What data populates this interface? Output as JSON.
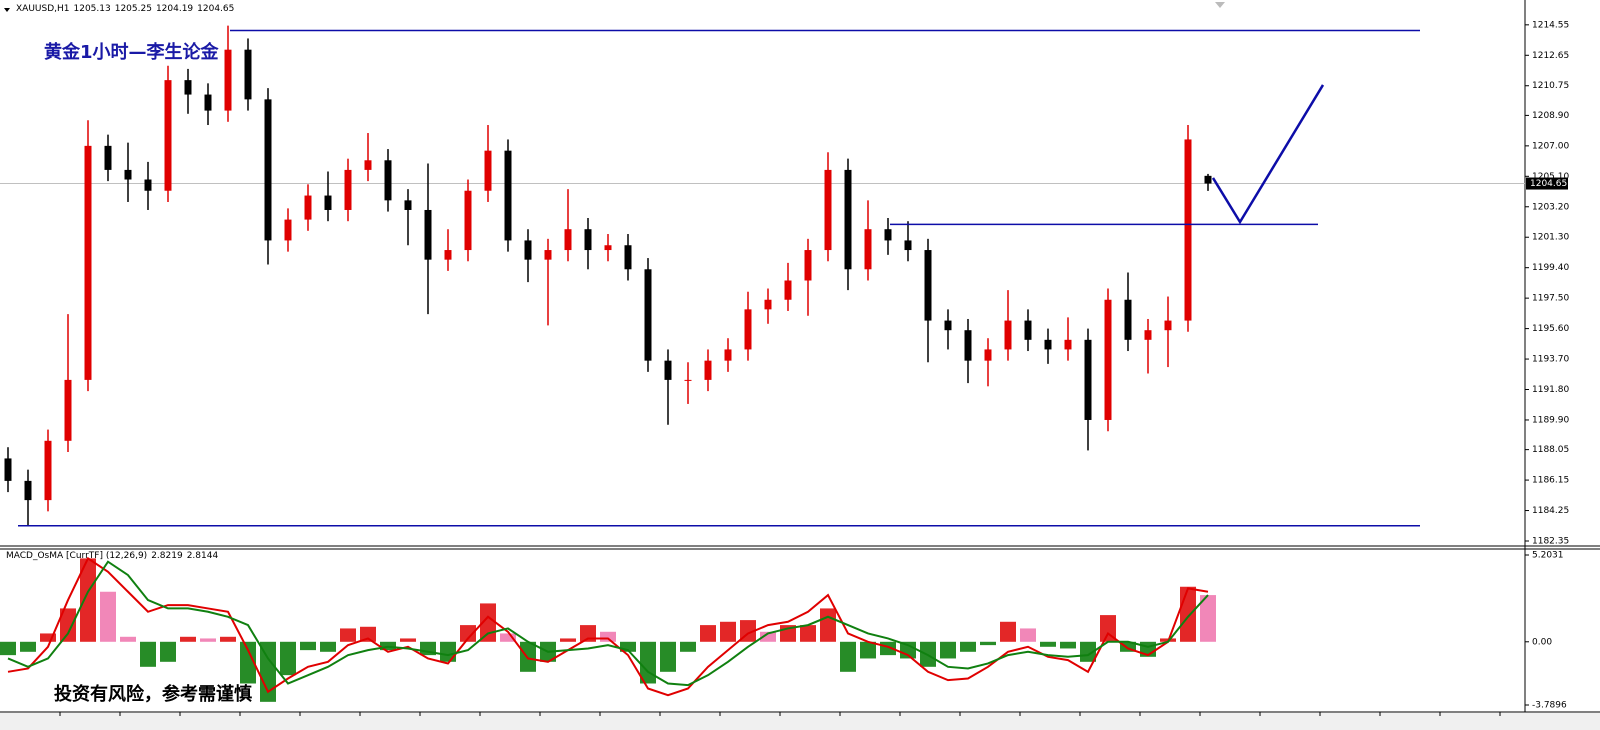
{
  "chart_data": [
    {
      "type": "candlestick",
      "symbol": "XAUUSD,H1",
      "annotation": "黄金1小时—李生论金",
      "up_color": "#e00000",
      "down_color": "#000000",
      "line_color": "#0d0da8",
      "ylim": [
        1182.1,
        1215.6
      ],
      "yticks": [
        1214.55,
        1212.65,
        1210.75,
        {
          "value": 1208.9,
          "label": "1208.90"
        },
        {
          "value": 1207,
          "label": "1207.00"
        },
        {
          "value": 1205.1,
          "label": "1205.10"
        },
        {
          "value": 1203.2,
          "label": "1203.20"
        },
        {
          "value": 1201.3,
          "label": "1201.30"
        },
        {
          "value": 1199.4,
          "label": "1199.40"
        },
        {
          "value": 1197.5,
          "label": "1197.50"
        },
        {
          "value": 1195.6,
          "label": "1195.60"
        },
        {
          "value": 1193.7,
          "label": "1193.70"
        },
        {
          "value": 1191.8,
          "label": "1191.80"
        },
        {
          "value": 1189.9,
          "label": "1189.90"
        },
        1188.05,
        1186.15,
        1184.25,
        1182.35
      ],
      "open": [
        1187.5,
        1186.1,
        1184.9,
        1188.6,
        1192.4,
        1207.0,
        1205.5,
        1204.9,
        1204.2,
        1211.1,
        1210.2,
        1209.2,
        1213.0,
        1209.9,
        1201.1,
        1202.4,
        1203.9,
        1203.0,
        1205.5,
        1206.1,
        1203.6,
        1203.0,
        1199.9,
        1200.5,
        1204.2,
        1206.7,
        1201.1,
        1199.9,
        1200.5,
        1201.8,
        1200.5,
        1200.8,
        1199.3,
        1193.6,
        1192.4,
        1192.4,
        1193.6,
        1194.3,
        1196.8,
        1197.4,
        1198.6,
        1200.5,
        1205.5,
        1199.3,
        1201.8,
        1201.1,
        1200.5,
        1196.1,
        1195.5,
        1193.6,
        1194.3,
        1196.1,
        1194.9,
        1194.3,
        1194.9,
        1189.9,
        1197.4,
        1194.9,
        1195.5,
        1196.1,
        1205.13
      ],
      "high": [
        1188.2,
        1186.8,
        1189.3,
        1196.5,
        1208.6,
        1207.7,
        1207.2,
        1206.0,
        1212.0,
        1211.8,
        1210.9,
        1214.5,
        1213.7,
        1210.6,
        1203.1,
        1204.6,
        1205.4,
        1206.2,
        1207.8,
        1206.8,
        1204.3,
        1205.9,
        1201.8,
        1204.9,
        1208.3,
        1207.4,
        1201.8,
        1201.2,
        1204.3,
        1202.5,
        1201.5,
        1201.5,
        1200.0,
        1194.3,
        1193.5,
        1194.3,
        1195.0,
        1197.9,
        1198.1,
        1199.7,
        1201.2,
        1206.6,
        1206.2,
        1203.6,
        1202.5,
        1202.3,
        1201.2,
        1196.8,
        1196.2,
        1195.0,
        1198.0,
        1196.8,
        1195.6,
        1196.3,
        1195.6,
        1198.1,
        1199.1,
        1196.2,
        1197.6,
        1208.3,
        1205.25
      ],
      "low": [
        1185.4,
        1183.3,
        1184.2,
        1187.9,
        1191.7,
        1204.8,
        1203.5,
        1203.0,
        1203.5,
        1209.0,
        1208.3,
        1208.5,
        1209.2,
        1199.6,
        1200.4,
        1201.7,
        1202.3,
        1202.3,
        1204.8,
        1202.9,
        1200.8,
        1196.5,
        1199.2,
        1199.8,
        1203.5,
        1200.4,
        1198.5,
        1195.8,
        1199.8,
        1199.3,
        1199.8,
        1198.6,
        1192.9,
        1189.6,
        1190.9,
        1191.7,
        1192.9,
        1193.6,
        1195.9,
        1196.7,
        1196.4,
        1199.8,
        1198.0,
        1198.6,
        1200.2,
        1199.8,
        1193.5,
        1194.3,
        1192.2,
        1192.0,
        1193.6,
        1194.2,
        1193.4,
        1193.6,
        1188.0,
        1189.2,
        1194.2,
        1192.8,
        1193.2,
        1195.4,
        1204.19
      ],
      "close": [
        1186.1,
        1184.9,
        1188.6,
        1192.4,
        1207.0,
        1205.5,
        1204.9,
        1204.2,
        1211.1,
        1210.2,
        1209.2,
        1213.0,
        1209.9,
        1201.1,
        1202.4,
        1203.9,
        1203.0,
        1205.5,
        1206.1,
        1203.6,
        1203.0,
        1199.9,
        1200.5,
        1204.2,
        1206.7,
        1201.1,
        1199.9,
        1200.5,
        1201.8,
        1200.5,
        1200.8,
        1199.3,
        1193.6,
        1192.4,
        1192.4,
        1193.6,
        1194.3,
        1196.8,
        1197.4,
        1198.6,
        1200.5,
        1205.5,
        1199.3,
        1201.8,
        1201.1,
        1200.5,
        1196.1,
        1195.5,
        1193.6,
        1194.3,
        1196.1,
        1194.9,
        1194.3,
        1194.9,
        1189.9,
        1197.4,
        1194.9,
        1195.5,
        1196.1,
        1207.4,
        1204.65
      ],
      "hlines": [
        1214.2,
        1202.1,
        1183.3
      ],
      "projection": [
        1205.0,
        1202.25,
        1210.8
      ]
    },
    {
      "type": "macd",
      "title": "MACD_OsMA [CurrTF] (12,26,9)",
      "readout": [
        2.8219,
        2.8144
      ],
      "annotation": "投资有风险，参考需谨慎",
      "ylim": [
        -3.7896,
        5.2031
      ],
      "yticks": [
        5.2031,
        {
          "value": 0,
          "label": "0.00"
        },
        -3.7896
      ],
      "rise_color": "#e01010",
      "fall_color": "#f07ab0",
      "neg_color": "#108010",
      "histogram": [
        -0.8,
        -0.6,
        0.5,
        2.0,
        5.0,
        3.0,
        0.3,
        -1.5,
        -1.2,
        0.3,
        0.2,
        0.3,
        -2.5,
        -3.6,
        -2.0,
        -0.5,
        -0.6,
        0.8,
        0.9,
        -0.5,
        0.2,
        -0.8,
        -1.2,
        1.0,
        2.3,
        0.5,
        -1.8,
        -1.2,
        0.2,
        1.0,
        0.6,
        -0.6,
        -2.5,
        -1.8,
        -0.6,
        1.0,
        1.2,
        1.3,
        0.6,
        1.0,
        1.0,
        2.0,
        -1.8,
        -1.0,
        -0.8,
        -1.0,
        -1.5,
        -1.0,
        -0.6,
        -0.2,
        1.2,
        0.8,
        -0.3,
        -0.4,
        -1.2,
        1.6,
        -0.6,
        -0.9,
        0.2,
        3.3,
        2.8
      ],
      "series": [
        {
          "color": "#e00000",
          "values": [
            -1.8,
            -1.6,
            -0.3,
            2.5,
            5.0,
            4.2,
            3.0,
            1.8,
            2.2,
            2.2,
            2.0,
            1.8,
            -0.5,
            -3.0,
            -2.2,
            -1.5,
            -1.2,
            -0.2,
            0.2,
            -0.6,
            -0.3,
            -1.0,
            -1.3,
            0.2,
            1.5,
            0.6,
            -1.0,
            -1.2,
            -0.5,
            0.2,
            0.2,
            -0.8,
            -2.8,
            -3.2,
            -2.8,
            -1.5,
            -0.5,
            0.5,
            1.0,
            1.2,
            1.8,
            2.8,
            0.5,
            0.0,
            -0.3,
            -0.8,
            -1.8,
            -2.3,
            -2.2,
            -1.5,
            -0.6,
            -0.3,
            -0.9,
            -1.1,
            -1.8,
            0.5,
            -0.4,
            -0.8,
            0.0,
            3.2,
            3.0
          ]
        },
        {
          "color": "#108010",
          "values": [
            -1.0,
            -1.5,
            -1.0,
            0.5,
            3.0,
            4.8,
            4.0,
            2.5,
            2.0,
            2.0,
            1.8,
            1.5,
            1.0,
            -1.0,
            -2.5,
            -2.0,
            -1.5,
            -0.8,
            -0.5,
            -0.3,
            -0.4,
            -0.6,
            -0.8,
            -0.5,
            0.5,
            0.8,
            0.0,
            -0.6,
            -0.5,
            -0.4,
            -0.2,
            -0.5,
            -1.8,
            -2.5,
            -2.6,
            -2.0,
            -1.2,
            -0.3,
            0.5,
            0.8,
            1.0,
            1.5,
            1.0,
            0.5,
            0.2,
            -0.2,
            -0.8,
            -1.5,
            -1.6,
            -1.3,
            -0.8,
            -0.6,
            -0.8,
            -0.9,
            -0.8,
            0.0,
            0.0,
            -0.3,
            0.0,
            1.5,
            2.8
          ]
        }
      ]
    }
  ]
}
